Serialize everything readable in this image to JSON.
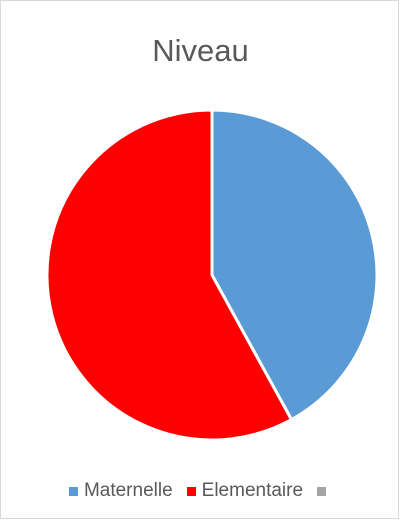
{
  "chart_data": {
    "type": "pie",
    "title": "Niveau",
    "categories": [
      "Maternelle",
      "Elementaire",
      ""
    ],
    "values": [
      42,
      58,
      0
    ],
    "colors": [
      "#5b9bd5",
      "#ff0000",
      "#a5a5a5"
    ],
    "legend_position": "bottom",
    "start_angle_deg": 0,
    "direction": "clockwise"
  }
}
